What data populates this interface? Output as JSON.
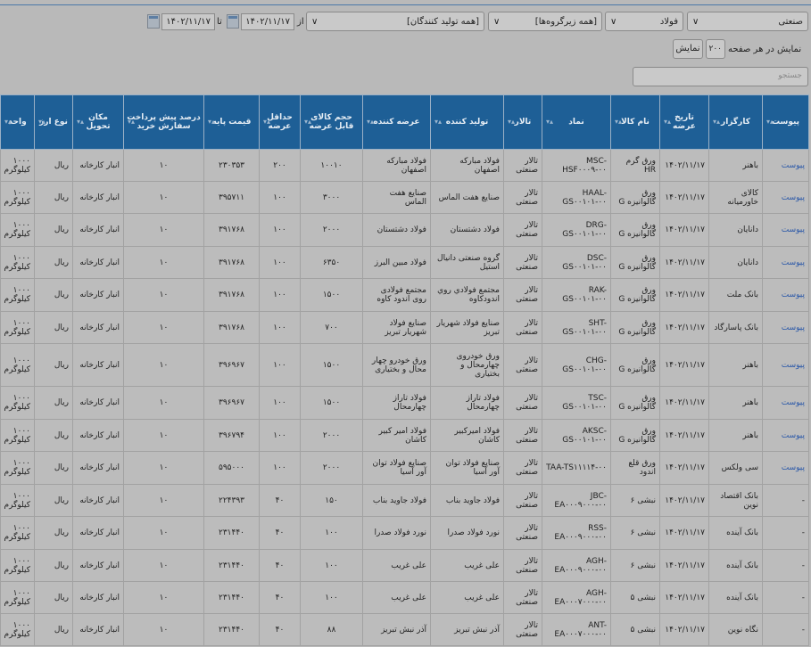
{
  "filters": {
    "market": "صنعتی",
    "group": "فولاد",
    "subgroup": "[همه زیرگروه‌ها]",
    "producer": "[همه تولید کنندگان]",
    "from_label": "از",
    "to_label": "تا",
    "date_from": "۱۴۰۲/۱۱/۱۷",
    "date_to": "۱۴۰۲/۱۱/۱۷"
  },
  "paging": {
    "per_page_label": "نمایش در هر صفحه",
    "per_page_value": "۲۰۰",
    "show_button": "نمایش"
  },
  "search": {
    "placeholder": "جستجو"
  },
  "table": {
    "columns": [
      "پیوست",
      "کارگزار",
      "تاریخ عرضه",
      "نام کالا",
      "نماد",
      "تالار",
      "تولید کننده",
      "عرضه کننده",
      "حجم کالای قابل عرضه",
      "حداقل عرضه",
      "قیمت پایه",
      "درصد پیش پرداخت سفارش خرید",
      "مکان تحویل",
      "نوع ارز",
      "واحد"
    ],
    "rows": [
      [
        "پیوست",
        "باهنر",
        "۱۴۰۲/۱۱/۱۷",
        "ورق گرم HR",
        "MSC-HSF۰۰۰۹-۰۰",
        "تالار صنعتی",
        "فولاد مبارکه اصفهان",
        "فولاد مبارکه اصفهان",
        "۱۰۰۱۰",
        "۲۰۰",
        "۲۳۰۳۵۳",
        "۱۰",
        "انبار کارخانه",
        "ریال",
        "۱۰۰۰ کیلوگرم"
      ],
      [
        "پیوست",
        "کالای خاورمیانه",
        "۱۴۰۲/۱۱/۱۷",
        "ورق گالوانیزه G",
        "HAAL-GS۰۰۱۰۱-۰۰",
        "تالار صنعتی",
        "صنایع هفت الماس",
        "صنایع هفت الماس",
        "۳۰۰۰",
        "۱۰۰",
        "۳۹۵۷۱۱",
        "۱۰",
        "انبار کارخانه",
        "ریال",
        "۱۰۰۰ کیلوگرم"
      ],
      [
        "پیوست",
        "دانایان",
        "۱۴۰۲/۱۱/۱۷",
        "ورق گالوانیزه G",
        "DRG-GS۰۰۱۰۱-۰۰",
        "تالار صنعتی",
        "فولاد دشتستان",
        "فولاد دشتستان",
        "۲۰۰۰",
        "۱۰۰",
        "۳۹۱۷۶۸",
        "۱۰",
        "انبار کارخانه",
        "ریال",
        "۱۰۰۰ کیلوگرم"
      ],
      [
        "پیوست",
        "دانایان",
        "۱۴۰۲/۱۱/۱۷",
        "ورق گالوانیزه G",
        "DSC-GS۰۰۱۰۱-۰۰",
        "تالار صنعتی",
        "گروه صنعتی دانیال استیل",
        "فولاد مبین البرز",
        "۶۳۵۰",
        "۱۰۰",
        "۳۹۱۷۶۸",
        "۱۰",
        "انبار کارخانه",
        "ریال",
        "۱۰۰۰ کیلوگرم"
      ],
      [
        "پیوست",
        "بانک ملت",
        "۱۴۰۲/۱۱/۱۷",
        "ورق گالوانیزه G",
        "RAK-GS۰۰۱۰۱-۰۰",
        "تالار صنعتی",
        "مجتمع فولادي روي اندودکاوه",
        "مجتمع فولادی روی اندود کاوه",
        "۱۵۰۰",
        "۱۰۰",
        "۳۹۱۷۶۸",
        "۱۰",
        "انبار کارخانه",
        "ریال",
        "۱۰۰۰ کیلوگرم"
      ],
      [
        "پیوست",
        "بانک پاسارگاد",
        "۱۴۰۲/۱۱/۱۷",
        "ورق گالوانیزه G",
        "SHT-GS۰۰۱۰۱-۰۰",
        "تالار صنعتی",
        "صنایع فولاد شهریار تبریز",
        "صنایع فولاد شهریار تبریز",
        "۷۰۰",
        "۱۰۰",
        "۳۹۱۷۶۸",
        "۱۰",
        "انبار کارخانه",
        "ریال",
        "۱۰۰۰ کیلوگرم"
      ],
      [
        "پیوست",
        "باهنر",
        "۱۴۰۲/۱۱/۱۷",
        "ورق گالوانیزه G",
        "CHG-GS۰۰۱۰۱-۰۰",
        "تالار صنعتی",
        "ورق خودروی چهارمحال و بختیاری",
        "ورق خودرو چهار محال و بختیاری",
        "۱۵۰۰",
        "۱۰۰",
        "۳۹۶۹۶۷",
        "۱۰",
        "انبار کارخانه",
        "ریال",
        "۱۰۰۰ کیلوگرم"
      ],
      [
        "پیوست",
        "باهنر",
        "۱۴۰۲/۱۱/۱۷",
        "ورق گالوانیزه G",
        "TSC-GS۰۰۱۰۱-۰۰",
        "تالار صنعتی",
        "فولاد تاراز چهارمحال",
        "فولاد تاراز چهارمحال",
        "۱۵۰۰",
        "۱۰۰",
        "۳۹۶۹۶۷",
        "۱۰",
        "انبار کارخانه",
        "ریال",
        "۱۰۰۰ کیلوگرم"
      ],
      [
        "پیوست",
        "باهنر",
        "۱۴۰۲/۱۱/۱۷",
        "ورق گالوانیزه G",
        "AKSC-GS۰۰۱۰۱-۰۰",
        "تالار صنعتی",
        "فولاد امیرکبیر کاشان",
        "فولاد امیر کبیر کاشان",
        "۲۰۰۰",
        "۱۰۰",
        "۳۹۶۷۹۴",
        "۱۰",
        "انبار کارخانه",
        "ریال",
        "۱۰۰۰ کیلوگرم"
      ],
      [
        "پیوست",
        "سی ولکس",
        "۱۴۰۲/۱۱/۱۷",
        "ورق قلع اندود",
        "TAA-TS۱۱۱۱۴-۰۰",
        "تالار صنعتی",
        "صنایع فولاد توان آور آسیا",
        "صنایع فولاد توان آور آسیا",
        "۲۰۰۰",
        "۱۰۰",
        "۵۹۵۰۰۰",
        "۱۰",
        "انبار کارخانه",
        "ریال",
        "۱۰۰۰ کیلوگرم"
      ],
      [
        "-",
        "بانک اقتصاد نوین",
        "۱۴۰۲/۱۱/۱۷",
        "نبشی ۶",
        "JBC-EA۰۰۰۹۰۰۰-۰۰",
        "تالار صنعتی",
        "فولاد جاوید بناب",
        "فولاد جاوید بناب",
        "۱۵۰",
        "۴۰",
        "۲۲۴۳۹۳",
        "۱۰",
        "انبار کارخانه",
        "ریال",
        "۱۰۰۰ کیلوگرم"
      ],
      [
        "-",
        "بانک آینده",
        "۱۴۰۲/۱۱/۱۷",
        "نبشی ۶",
        "RSS-EA۰۰۰۹۰۰۰-۰۰",
        "تالار صنعتی",
        "نورد فولاد صدرا",
        "نورد فولاد صدرا",
        "۱۰۰",
        "۴۰",
        "۲۳۱۴۴۰",
        "۱۰",
        "انبار کارخانه",
        "ریال",
        "۱۰۰۰ کیلوگرم"
      ],
      [
        "-",
        "بانک آینده",
        "۱۴۰۲/۱۱/۱۷",
        "نبشی ۶",
        "AGH-EA۰۰۰۹۰۰۰-۰۰",
        "تالار صنعتی",
        "علی غریب",
        "علی غریب",
        "۱۰۰",
        "۴۰",
        "۲۳۱۴۴۰",
        "۱۰",
        "انبار کارخانه",
        "ریال",
        "۱۰۰۰ کیلوگرم"
      ],
      [
        "-",
        "بانک آینده",
        "۱۴۰۲/۱۱/۱۷",
        "نبشی ۵",
        "AGH-EA۰۰۰۷۰۰۰-۰۰",
        "تالار صنعتی",
        "علی غریب",
        "علی غریب",
        "۱۰۰",
        "۴۰",
        "۲۳۱۴۴۰",
        "۱۰",
        "انبار کارخانه",
        "ریال",
        "۱۰۰۰ کیلوگرم"
      ],
      [
        "-",
        "نگاه نوین",
        "۱۴۰۲/۱۱/۱۷",
        "نبشی ۵",
        "ANT-EA۰۰۰۷۰۰۰-۰۰",
        "تالار صنعتی",
        "آذر نبش تبریز",
        "آذر نبش تبریز",
        "۸۸",
        "۴۰",
        "۲۳۱۴۴۰",
        "۱۰",
        "انبار کارخانه",
        "ریال",
        "۱۰۰۰ کیلوگرم"
      ]
    ]
  }
}
